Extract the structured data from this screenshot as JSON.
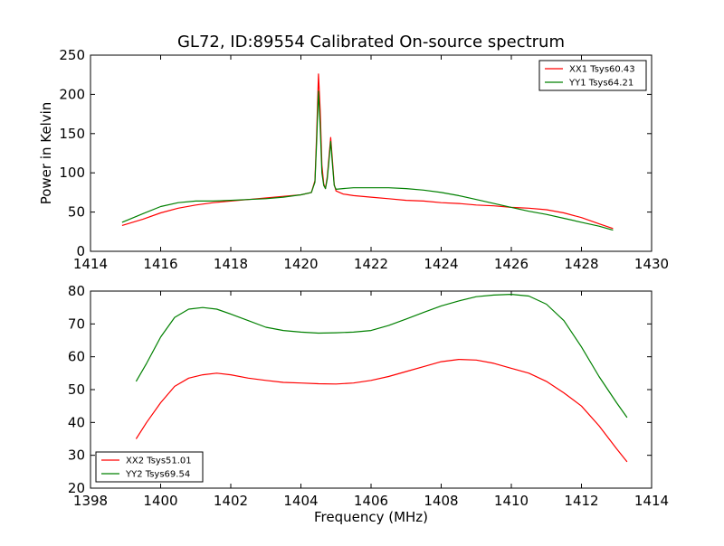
{
  "figure": {
    "title": "GL72, ID:89554 Calibrated On-source spectrum",
    "xlabel": "Frequency (MHz)"
  },
  "chart_data": [
    {
      "type": "line",
      "title": "GL72, ID:89554 Calibrated On-source spectrum",
      "xlabel": "",
      "ylabel": "Power in Kelvin",
      "xlim": [
        1414,
        1430
      ],
      "ylim": [
        0,
        250
      ],
      "xticks": [
        1414,
        1416,
        1418,
        1420,
        1422,
        1424,
        1426,
        1428,
        1430
      ],
      "yticks": [
        0,
        50,
        100,
        150,
        200,
        250
      ],
      "grid": false,
      "legend": "top-right",
      "series": [
        {
          "name": "XX1 Tsys60.43",
          "color": "#ff0000",
          "x": [
            1414.9,
            1415.5,
            1416,
            1416.5,
            1417,
            1417.5,
            1418,
            1418.5,
            1419,
            1419.5,
            1420,
            1420.3,
            1420.4,
            1420.45,
            1420.5,
            1420.55,
            1420.6,
            1420.65,
            1420.7,
            1420.75,
            1420.8,
            1420.85,
            1420.9,
            1420.95,
            1421,
            1421.2,
            1421.5,
            1422,
            1422.5,
            1423,
            1423.5,
            1424,
            1424.5,
            1425,
            1425.5,
            1426,
            1426.5,
            1427,
            1427.5,
            1428,
            1428.5,
            1428.9
          ],
          "y": [
            33,
            41,
            49,
            55,
            59,
            62,
            64,
            66,
            68,
            70,
            72,
            75,
            90,
            150,
            226,
            180,
            110,
            86,
            80,
            95,
            120,
            145,
            115,
            85,
            77,
            73,
            71,
            69,
            67,
            65,
            64,
            62,
            61,
            59,
            58,
            56,
            55,
            53,
            49,
            43,
            35,
            29
          ]
        },
        {
          "name": "YY1 Tsys64.21",
          "color": "#008000",
          "x": [
            1414.9,
            1415.5,
            1416,
            1416.5,
            1417,
            1417.5,
            1418,
            1418.5,
            1419,
            1419.5,
            1420,
            1420.3,
            1420.4,
            1420.45,
            1420.5,
            1420.55,
            1420.6,
            1420.65,
            1420.7,
            1420.75,
            1420.8,
            1420.85,
            1420.9,
            1420.95,
            1421,
            1421.2,
            1421.5,
            1422,
            1422.5,
            1423,
            1423.5,
            1424,
            1424.5,
            1425,
            1425.5,
            1426,
            1426.5,
            1427,
            1427.5,
            1428,
            1428.5,
            1428.9
          ],
          "y": [
            37,
            48,
            57,
            62,
            64,
            64,
            65,
            66,
            67,
            69,
            72,
            75,
            88,
            140,
            204,
            160,
            100,
            84,
            80,
            92,
            115,
            140,
            110,
            84,
            79,
            80,
            81,
            81,
            81,
            80,
            78,
            75,
            71,
            66,
            61,
            56,
            51,
            47,
            42,
            37,
            32,
            27
          ]
        }
      ]
    },
    {
      "type": "line",
      "title": "",
      "xlabel": "Frequency (MHz)",
      "ylabel": "",
      "xlim": [
        1398,
        1414
      ],
      "ylim": [
        20,
        80
      ],
      "xticks": [
        1398,
        1400,
        1402,
        1404,
        1406,
        1408,
        1410,
        1412,
        1414
      ],
      "yticks": [
        20,
        30,
        40,
        50,
        60,
        70,
        80
      ],
      "grid": false,
      "legend": "bottom-left",
      "series": [
        {
          "name": "XX2 Tsys51.01",
          "color": "#ff0000",
          "x": [
            1399.3,
            1399.6,
            1400,
            1400.4,
            1400.8,
            1401.2,
            1401.6,
            1402,
            1402.5,
            1403,
            1403.5,
            1404,
            1404.5,
            1405,
            1405.5,
            1406,
            1406.5,
            1407,
            1407.5,
            1408,
            1408.5,
            1409,
            1409.5,
            1410,
            1410.5,
            1411,
            1411.5,
            1412,
            1412.5,
            1413,
            1413.3
          ],
          "y": [
            35,
            40,
            46,
            51,
            53.5,
            54.5,
            55,
            54.5,
            53.5,
            52.8,
            52.2,
            52,
            51.8,
            51.7,
            52,
            52.8,
            54,
            55.5,
            57,
            58.5,
            59.2,
            59,
            58,
            56.5,
            55,
            52.5,
            49,
            45,
            39,
            32,
            28
          ]
        },
        {
          "name": "YY2 Tsys69.54",
          "color": "#008000",
          "x": [
            1399.3,
            1399.6,
            1400,
            1400.4,
            1400.8,
            1401.2,
            1401.6,
            1402,
            1402.5,
            1403,
            1403.5,
            1404,
            1404.5,
            1405,
            1405.5,
            1406,
            1406.5,
            1407,
            1407.5,
            1408,
            1408.5,
            1409,
            1409.5,
            1410,
            1410.5,
            1411,
            1411.5,
            1412,
            1412.5,
            1413,
            1413.3
          ],
          "y": [
            52.5,
            58,
            66,
            72,
            74.5,
            75,
            74.5,
            73,
            71,
            69,
            68,
            67.5,
            67.2,
            67.3,
            67.5,
            68,
            69.5,
            71.5,
            73.5,
            75.5,
            77,
            78.3,
            78.8,
            79,
            78.5,
            76,
            71,
            63,
            54,
            46,
            41.5
          ]
        }
      ]
    }
  ]
}
